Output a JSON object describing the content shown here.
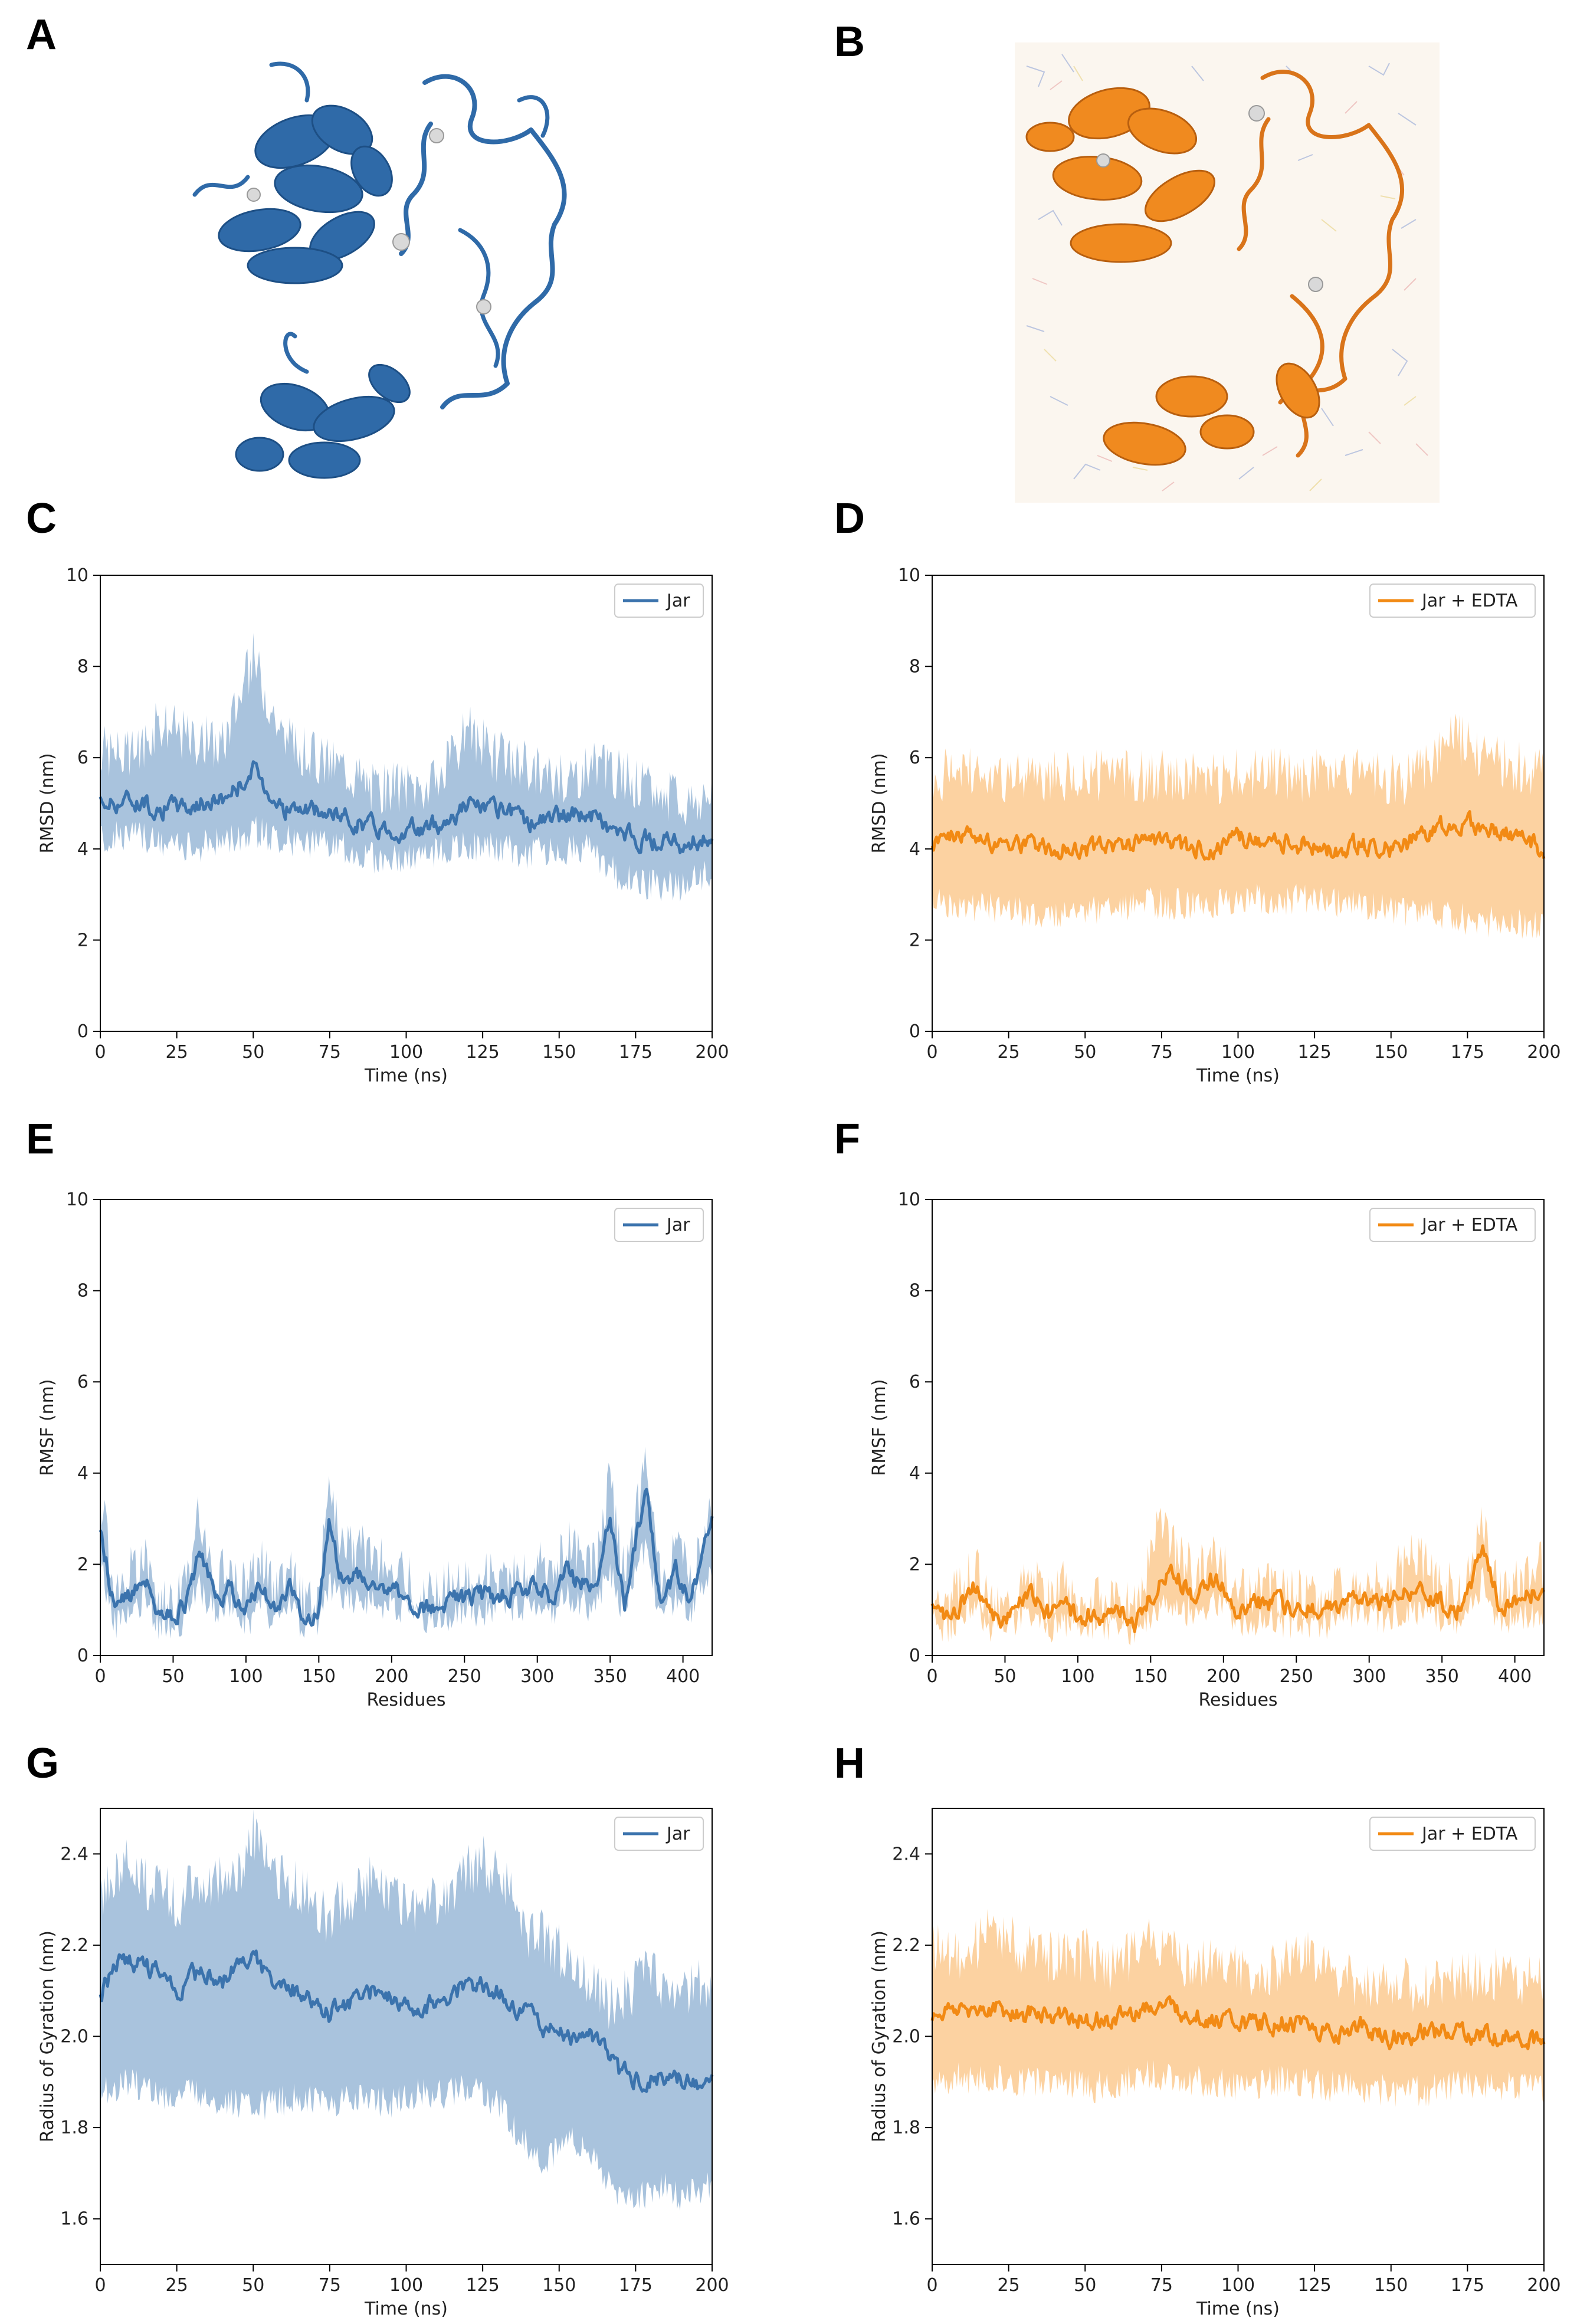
{
  "panels": {
    "A": "A",
    "B": "B",
    "C": "C",
    "D": "D",
    "E": "E",
    "F": "F",
    "G": "G",
    "H": "H"
  },
  "colors": {
    "jar": "#3b73ad",
    "jar_band": "#93b4d4",
    "edta": "#f28a14",
    "edta_band": "#fbc78a",
    "ion_sphere": "#d9d9d9"
  },
  "chart_data": [
    {
      "id": "C",
      "type": "line",
      "title": "",
      "xlabel": "Time (ns)",
      "ylabel": "RMSD (nm)",
      "xlim": [
        0,
        200
      ],
      "ylim": [
        0,
        10
      ],
      "xticks": [
        "0",
        "25",
        "50",
        "75",
        "100",
        "125",
        "150",
        "175",
        "200"
      ],
      "yticks": [
        "0",
        "2",
        "4",
        "6",
        "8",
        "10"
      ],
      "legend": {
        "label": "Jar",
        "position": "top-right"
      },
      "color_key": "jar",
      "series": [
        {
          "name": "Jar",
          "x": [
            0,
            10,
            20,
            30,
            40,
            50,
            60,
            70,
            80,
            90,
            100,
            110,
            120,
            130,
            140,
            150,
            160,
            170,
            180,
            190,
            200
          ],
          "y": [
            5.0,
            5.1,
            4.9,
            4.95,
            5.1,
            5.7,
            4.9,
            4.8,
            4.7,
            4.5,
            4.4,
            4.5,
            5.0,
            4.8,
            4.6,
            4.7,
            4.8,
            4.3,
            4.2,
            4.1,
            4.3
          ],
          "lower": [
            4.2,
            4.3,
            4.1,
            4.0,
            4.2,
            4.4,
            4.2,
            4.1,
            4.0,
            3.8,
            3.8,
            3.9,
            4.1,
            4.0,
            3.9,
            4.0,
            4.0,
            3.4,
            3.2,
            3.2,
            3.5
          ],
          "upper": [
            6.2,
            6.0,
            6.8,
            6.4,
            6.3,
            8.2,
            6.4,
            6.0,
            5.8,
            5.3,
            5.4,
            5.4,
            6.6,
            6.0,
            5.8,
            5.5,
            5.8,
            5.6,
            5.3,
            5.0,
            5.2
          ]
        }
      ]
    },
    {
      "id": "D",
      "type": "line",
      "title": "",
      "xlabel": "Time (ns)",
      "ylabel": "RMSD (nm)",
      "xlim": [
        0,
        200
      ],
      "ylim": [
        0,
        10
      ],
      "xticks": [
        "0",
        "25",
        "50",
        "75",
        "100",
        "125",
        "150",
        "175",
        "200"
      ],
      "yticks": [
        "0",
        "2",
        "4",
        "6",
        "8",
        "10"
      ],
      "legend": {
        "label": "Jar + EDTA",
        "position": "top-right"
      },
      "color_key": "edta",
      "series": [
        {
          "name": "Jar + EDTA",
          "x": [
            0,
            10,
            20,
            30,
            40,
            50,
            60,
            70,
            80,
            90,
            100,
            110,
            120,
            130,
            140,
            150,
            160,
            170,
            180,
            190,
            200
          ],
          "y": [
            4.2,
            4.3,
            4.2,
            4.1,
            4.0,
            4.0,
            4.1,
            4.1,
            4.0,
            4.0,
            4.2,
            4.1,
            4.1,
            4.0,
            4.1,
            4.0,
            4.2,
            4.6,
            4.5,
            4.3,
            4.0
          ],
          "lower": [
            2.9,
            2.8,
            2.7,
            2.6,
            2.6,
            2.6,
            2.7,
            2.8,
            2.8,
            2.8,
            2.9,
            2.9,
            2.9,
            2.8,
            2.8,
            2.7,
            2.6,
            2.5,
            2.4,
            2.4,
            2.3
          ],
          "upper": [
            5.6,
            5.7,
            5.6,
            5.5,
            5.6,
            5.6,
            5.7,
            5.6,
            5.6,
            5.5,
            5.6,
            5.7,
            5.6,
            5.6,
            5.6,
            5.5,
            5.6,
            6.5,
            6.1,
            5.8,
            5.6
          ]
        }
      ]
    },
    {
      "id": "E",
      "type": "line",
      "title": "",
      "xlabel": "Residues",
      "ylabel": "RMSF (nm)",
      "xlim": [
        0,
        420
      ],
      "ylim": [
        0,
        10
      ],
      "xticks": [
        "0",
        "50",
        "100",
        "150",
        "200",
        "250",
        "300",
        "350",
        "400"
      ],
      "yticks": [
        "0",
        "2",
        "4",
        "6",
        "8",
        "10"
      ],
      "legend": {
        "label": "Jar",
        "position": "top-right"
      },
      "color_key": "jar",
      "series": [
        {
          "name": "Jar",
          "x": [
            0,
            10,
            20,
            30,
            40,
            50,
            60,
            68,
            80,
            90,
            100,
            110,
            120,
            130,
            140,
            150,
            157,
            165,
            180,
            200,
            220,
            240,
            260,
            280,
            300,
            310,
            320,
            340,
            350,
            360,
            375,
            385,
            395,
            405,
            420
          ],
          "y": [
            2.8,
            1.0,
            1.3,
            1.8,
            0.9,
            0.8,
            1.2,
            2.3,
            1.2,
            1.5,
            1.0,
            1.5,
            1.0,
            1.5,
            0.8,
            1.0,
            2.8,
            1.8,
            1.7,
            1.5,
            1.0,
            1.2,
            1.3,
            1.3,
            1.5,
            1.2,
            1.8,
            1.4,
            3.0,
            1.2,
            3.8,
            1.0,
            1.8,
            1.2,
            3.0
          ],
          "lower": [
            2.0,
            0.7,
            0.9,
            1.3,
            0.7,
            0.6,
            0.9,
            1.5,
            0.9,
            1.1,
            0.7,
            1.1,
            0.7,
            1.1,
            0.6,
            0.7,
            1.6,
            1.2,
            1.2,
            1.1,
            0.8,
            0.9,
            1.0,
            1.0,
            1.1,
            0.9,
            1.3,
            1.0,
            1.9,
            0.9,
            2.5,
            0.7,
            1.3,
            0.9,
            2.0
          ],
          "upper": [
            3.6,
            1.4,
            1.8,
            2.2,
            1.2,
            1.1,
            1.6,
            3.2,
            1.6,
            2.0,
            1.4,
            2.0,
            1.4,
            1.9,
            1.1,
            1.4,
            4.1,
            2.5,
            2.3,
            2.0,
            1.3,
            1.5,
            1.7,
            1.7,
            2.0,
            1.6,
            2.4,
            1.9,
            4.0,
            1.6,
            4.3,
            1.4,
            2.4,
            1.6,
            3.4
          ]
        }
      ]
    },
    {
      "id": "F",
      "type": "line",
      "title": "",
      "xlabel": "Residues",
      "ylabel": "RMSF (nm)",
      "xlim": [
        0,
        420
      ],
      "ylim": [
        0,
        10
      ],
      "xticks": [
        "0",
        "50",
        "100",
        "150",
        "200",
        "250",
        "300",
        "350",
        "400"
      ],
      "yticks": [
        "0",
        "2",
        "4",
        "6",
        "8",
        "10"
      ],
      "legend": {
        "label": "Jar + EDTA",
        "position": "top-right"
      },
      "color_key": "edta",
      "series": [
        {
          "name": "Jar + EDTA",
          "x": [
            0,
            10,
            20,
            30,
            40,
            50,
            60,
            70,
            80,
            90,
            100,
            110,
            120,
            130,
            140,
            155,
            165,
            180,
            195,
            210,
            230,
            250,
            270,
            290,
            310,
            330,
            350,
            365,
            378,
            390,
            405,
            420
          ],
          "y": [
            1.1,
            0.8,
            1.2,
            1.5,
            0.8,
            0.8,
            1.2,
            1.3,
            0.9,
            1.2,
            0.8,
            1.0,
            0.8,
            0.9,
            0.7,
            1.6,
            1.8,
            1.3,
            1.8,
            1.0,
            1.2,
            1.0,
            1.0,
            1.2,
            1.2,
            1.5,
            1.2,
            1.0,
            2.5,
            1.0,
            1.3,
            1.5
          ],
          "lower": [
            0.8,
            0.6,
            0.9,
            1.1,
            0.6,
            0.6,
            0.8,
            0.9,
            0.6,
            0.8,
            0.6,
            0.7,
            0.6,
            0.6,
            0.5,
            1.0,
            1.1,
            0.9,
            1.2,
            0.7,
            0.8,
            0.7,
            0.7,
            0.8,
            0.8,
            1.0,
            0.8,
            0.7,
            1.6,
            0.7,
            0.9,
            1.0
          ],
          "upper": [
            1.5,
            1.1,
            1.6,
            1.9,
            1.1,
            1.1,
            1.6,
            1.7,
            1.2,
            1.5,
            1.1,
            1.3,
            1.1,
            1.2,
            1.0,
            2.7,
            2.5,
            1.8,
            2.3,
            1.3,
            1.5,
            1.3,
            1.3,
            1.6,
            1.6,
            2.2,
            1.6,
            1.3,
            2.9,
            1.3,
            1.7,
            2.0
          ]
        }
      ]
    },
    {
      "id": "G",
      "type": "line",
      "title": "",
      "xlabel": "Time (ns)",
      "ylabel": "Radius of Gyration (nm)",
      "xlim": [
        0,
        200
      ],
      "ylim": [
        1.5,
        2.5
      ],
      "xticks": [
        "0",
        "25",
        "50",
        "75",
        "100",
        "125",
        "150",
        "175",
        "200"
      ],
      "yticks": [
        "1.6",
        "1.8",
        "2.0",
        "2.2",
        "2.4"
      ],
      "ytick_values": [
        1.6,
        1.8,
        2.0,
        2.2,
        2.4
      ],
      "legend": {
        "label": "Jar",
        "position": "top-right"
      },
      "color_key": "jar",
      "series": [
        {
          "name": "Jar",
          "x": [
            0,
            5,
            10,
            15,
            20,
            25,
            30,
            35,
            40,
            45,
            50,
            55,
            60,
            65,
            70,
            75,
            80,
            85,
            90,
            95,
            100,
            105,
            110,
            115,
            120,
            125,
            130,
            135,
            140,
            145,
            150,
            155,
            160,
            165,
            170,
            175,
            180,
            185,
            190,
            195,
            200
          ],
          "y": [
            2.08,
            2.16,
            2.17,
            2.15,
            2.14,
            2.08,
            2.13,
            2.14,
            2.12,
            2.15,
            2.17,
            2.13,
            2.12,
            2.1,
            2.07,
            2.05,
            2.07,
            2.09,
            2.1,
            2.09,
            2.07,
            2.06,
            2.08,
            2.1,
            2.11,
            2.12,
            2.1,
            2.07,
            2.05,
            2.02,
            2.0,
            1.99,
            2.0,
            1.97,
            1.92,
            1.91,
            1.91,
            1.9,
            1.91,
            1.9,
            1.9
          ],
          "lower": [
            1.88,
            1.89,
            1.9,
            1.89,
            1.87,
            1.86,
            1.88,
            1.87,
            1.86,
            1.85,
            1.84,
            1.85,
            1.86,
            1.87,
            1.86,
            1.85,
            1.86,
            1.87,
            1.86,
            1.85,
            1.87,
            1.88,
            1.87,
            1.88,
            1.88,
            1.87,
            1.85,
            1.8,
            1.76,
            1.72,
            1.75,
            1.78,
            1.74,
            1.68,
            1.65,
            1.64,
            1.66,
            1.67,
            1.65,
            1.66,
            1.67
          ],
          "upper": [
            2.28,
            2.37,
            2.38,
            2.33,
            2.34,
            2.28,
            2.34,
            2.33,
            2.36,
            2.36,
            2.44,
            2.37,
            2.34,
            2.33,
            2.28,
            2.26,
            2.3,
            2.32,
            2.35,
            2.32,
            2.29,
            2.27,
            2.3,
            2.33,
            2.36,
            2.39,
            2.35,
            2.3,
            2.23,
            2.22,
            2.19,
            2.15,
            2.12,
            2.07,
            2.08,
            2.11,
            2.14,
            2.08,
            2.1,
            2.12,
            2.12
          ]
        }
      ]
    },
    {
      "id": "H",
      "type": "line",
      "title": "",
      "xlabel": "Time (ns)",
      "ylabel": "Radius of Gyration (nm)",
      "xlim": [
        0,
        200
      ],
      "ylim": [
        1.5,
        2.5
      ],
      "xticks": [
        "0",
        "25",
        "50",
        "75",
        "100",
        "125",
        "150",
        "175",
        "200"
      ],
      "yticks": [
        "1.6",
        "1.8",
        "2.0",
        "2.2",
        "2.4"
      ],
      "ytick_values": [
        1.6,
        1.8,
        2.0,
        2.2,
        2.4
      ],
      "legend": {
        "label": "Jar + EDTA",
        "position": "top-right"
      },
      "color_key": "edta",
      "series": [
        {
          "name": "Jar + EDTA",
          "x": [
            0,
            10,
            20,
            30,
            40,
            50,
            60,
            70,
            80,
            90,
            100,
            110,
            120,
            130,
            140,
            150,
            160,
            170,
            180,
            190,
            200
          ],
          "y": [
            2.05,
            2.06,
            2.06,
            2.05,
            2.05,
            2.04,
            2.03,
            2.07,
            2.06,
            2.04,
            2.03,
            2.03,
            2.03,
            2.01,
            2.02,
            2.0,
            2.01,
            2.01,
            2.0,
            2.01,
            1.98
          ],
          "lower": [
            1.9,
            1.91,
            1.91,
            1.9,
            1.9,
            1.89,
            1.89,
            1.92,
            1.91,
            1.9,
            1.89,
            1.9,
            1.9,
            1.89,
            1.89,
            1.88,
            1.88,
            1.89,
            1.89,
            1.89,
            1.88
          ],
          "upper": [
            2.19,
            2.18,
            2.23,
            2.19,
            2.17,
            2.18,
            2.15,
            2.21,
            2.17,
            2.16,
            2.15,
            2.14,
            2.19,
            2.13,
            2.12,
            2.13,
            2.1,
            2.12,
            2.14,
            2.13,
            2.12
          ]
        }
      ]
    }
  ]
}
